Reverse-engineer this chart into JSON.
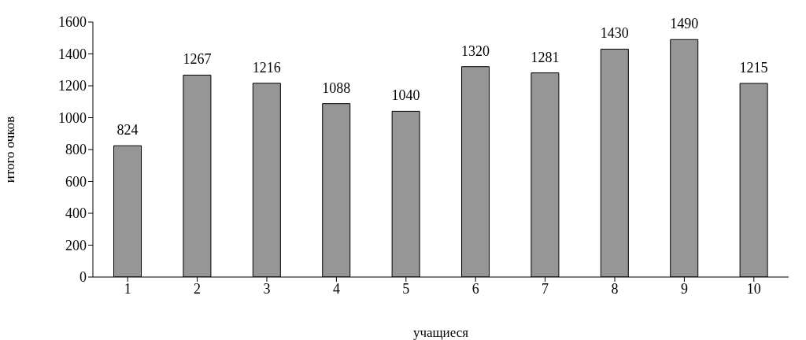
{
  "chart_data": {
    "type": "bar",
    "xlabel": "учащиеся",
    "ylabel": "итого очков",
    "categories": [
      "1",
      "2",
      "3",
      "4",
      "5",
      "6",
      "7",
      "8",
      "9",
      "10"
    ],
    "values": [
      824,
      1267,
      1216,
      1088,
      1040,
      1320,
      1281,
      1430,
      1490,
      1215
    ],
    "color": "#969696",
    "ylim": [
      0,
      1600
    ],
    "yticks": [
      0,
      200,
      400,
      600,
      800,
      1000,
      1200,
      1400,
      1600
    ],
    "grid": false,
    "legend": false,
    "data_labels": true
  }
}
